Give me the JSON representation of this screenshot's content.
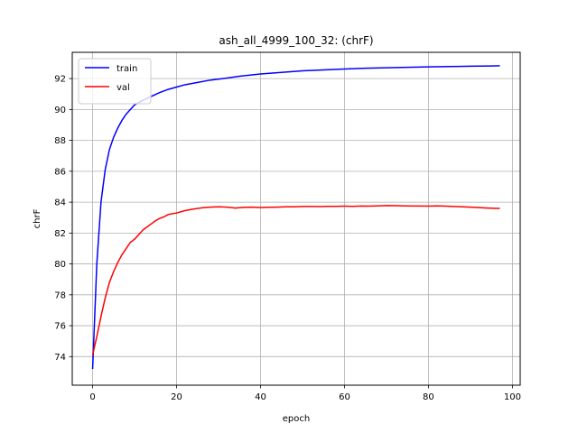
{
  "chart_data": {
    "type": "line",
    "title": "ash_all_4999_100_32: (chrF)",
    "xlabel": "epoch",
    "ylabel": "chrF",
    "xlim": [
      -4.85,
      101.85
    ],
    "ylim": [
      72.15,
      93.7
    ],
    "xticks": [
      0,
      20,
      40,
      60,
      80,
      100
    ],
    "yticks": [
      74,
      76,
      78,
      80,
      82,
      84,
      86,
      88,
      90,
      92
    ],
    "grid": true,
    "legend_position": "upper-left",
    "series": [
      {
        "name": "train",
        "color": "#0000ff",
        "x": [
          0,
          1,
          2,
          3,
          4,
          5,
          6,
          7,
          8,
          9,
          10,
          12,
          14,
          16,
          18,
          20,
          22,
          25,
          28,
          31,
          35,
          40,
          45,
          50,
          55,
          60,
          65,
          70,
          75,
          80,
          85,
          90,
          95,
          97
        ],
        "y": [
          73.2,
          80.0,
          84.0,
          86.1,
          87.4,
          88.2,
          88.8,
          89.3,
          89.7,
          90.0,
          90.3,
          90.6,
          90.85,
          91.1,
          91.3,
          91.45,
          91.6,
          91.75,
          91.9,
          92.0,
          92.15,
          92.3,
          92.4,
          92.5,
          92.56,
          92.62,
          92.67,
          92.7,
          92.73,
          92.76,
          92.78,
          92.8,
          92.82,
          92.83
        ]
      },
      {
        "name": "val",
        "color": "#ff0000",
        "x": [
          0,
          1,
          2,
          3,
          4,
          5,
          6,
          7,
          8,
          9,
          10,
          11,
          12,
          13,
          14,
          15,
          16,
          17,
          18,
          19,
          20,
          22,
          24,
          26,
          28,
          30,
          32,
          34,
          36,
          38,
          40,
          42,
          44,
          46,
          48,
          50,
          52,
          54,
          56,
          58,
          60,
          62,
          64,
          66,
          68,
          70,
          72,
          74,
          76,
          78,
          80,
          82,
          84,
          86,
          88,
          90,
          92,
          94,
          96,
          97
        ],
        "y": [
          74.1,
          75.3,
          76.6,
          77.8,
          78.8,
          79.5,
          80.1,
          80.6,
          81.0,
          81.4,
          81.6,
          81.9,
          82.2,
          82.4,
          82.6,
          82.8,
          82.95,
          83.05,
          83.2,
          83.25,
          83.3,
          83.45,
          83.55,
          83.63,
          83.68,
          83.7,
          83.68,
          83.62,
          83.66,
          83.68,
          83.65,
          83.67,
          83.68,
          83.7,
          83.7,
          83.72,
          83.72,
          83.71,
          83.73,
          83.73,
          83.74,
          83.73,
          83.75,
          83.74,
          83.76,
          83.78,
          83.77,
          83.76,
          83.75,
          83.75,
          83.74,
          83.76,
          83.74,
          83.72,
          83.7,
          83.68,
          83.65,
          83.62,
          83.6,
          83.6
        ]
      }
    ]
  }
}
